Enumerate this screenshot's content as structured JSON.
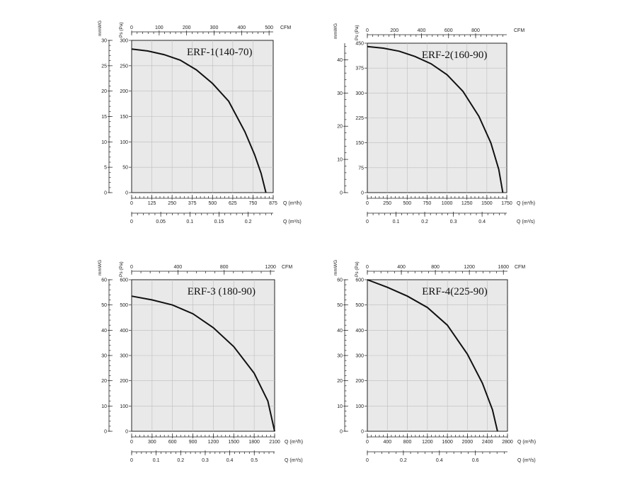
{
  "chart_data": [
    {
      "type": "line",
      "title": "ERF-1(140-70)",
      "series": [
        {
          "name": "ERF-1(140-70)",
          "x": [
            0,
            100,
            200,
            300,
            400,
            500,
            600,
            700,
            760,
            800,
            830
          ],
          "y": [
            283,
            279,
            272,
            261,
            242,
            215,
            180,
            120,
            75,
            38,
            0
          ]
        }
      ],
      "x_unit_label": "Q (m³/h)",
      "x_ticks": [
        "0",
        "125",
        "250",
        "375",
        "500",
        "625",
        "750",
        "875"
      ],
      "xlim": [
        0,
        875
      ],
      "y_label": "Ps (Pa)",
      "y_ticks": [
        "0",
        "50",
        "100",
        "150",
        "200",
        "250",
        "300"
      ],
      "ylim": [
        0,
        300
      ],
      "cfm_label": "CFM",
      "cfm_ticks": [
        "0",
        "100",
        "200",
        "300",
        "400",
        "500"
      ],
      "cfm_lim": [
        0,
        515
      ],
      "mmwg_label": "mmWG",
      "mmwg_ticks": [
        "0",
        "5",
        "10",
        "15",
        "20",
        "25",
        "30"
      ],
      "mmwg_lim": [
        0,
        30
      ],
      "m3s_label": "Q (m³/s)",
      "m3s_ticks": [
        "0",
        "0.05",
        "0.1",
        "0.15",
        "0.2"
      ],
      "m3s_lim": [
        0,
        0.243
      ]
    },
    {
      "type": "line",
      "title": "ERF-2(160-90)",
      "series": [
        {
          "name": "ERF-2(160-90)",
          "x": [
            0,
            200,
            400,
            600,
            800,
            1000,
            1200,
            1400,
            1550,
            1650,
            1700
          ],
          "y": [
            440,
            435,
            426,
            410,
            388,
            355,
            305,
            230,
            150,
            70,
            0
          ]
        }
      ],
      "x_unit_label": "Q (m³/h)",
      "x_ticks": [
        "0",
        "250",
        "500",
        "750",
        "1000",
        "1250",
        "1500",
        "1750"
      ],
      "xlim": [
        0,
        1750
      ],
      "y_label": "Ps (Pa)",
      "y_ticks": [
        "0",
        "75",
        "150",
        "225",
        "300",
        "375",
        "450"
      ],
      "ylim": [
        0,
        450
      ],
      "cfm_label": "CFM",
      "cfm_ticks": [
        "0",
        "200",
        "400",
        "600",
        "800"
      ],
      "cfm_lim": [
        0,
        1030
      ],
      "mmwg_label": "mmWG",
      "mmwg_ticks": [
        "0",
        "10",
        "20",
        "30",
        "40"
      ],
      "mmwg_lim": [
        0,
        45
      ],
      "m3s_label": "Q (m³/s)",
      "m3s_ticks": [
        "0",
        "0.1",
        "0.2",
        "0.3",
        "0.4"
      ],
      "m3s_lim": [
        0,
        0.486
      ]
    },
    {
      "type": "line",
      "title": "ERF-3 (180-90)",
      "series": [
        {
          "name": "ERF-3 (180-90)",
          "x": [
            0,
            300,
            600,
            900,
            1200,
            1500,
            1800,
            2000,
            2100
          ],
          "y": [
            535,
            520,
            500,
            465,
            410,
            335,
            230,
            120,
            0
          ]
        }
      ],
      "x_unit_label": "Q (m³/h)",
      "x_ticks": [
        "0",
        "300",
        "600",
        "900",
        "1200",
        "1500",
        "1800",
        "2100"
      ],
      "xlim": [
        0,
        2100
      ],
      "y_label": "Ps (Pa)",
      "y_ticks": [
        "0",
        "100",
        "200",
        "300",
        "400",
        "500",
        "600"
      ],
      "ylim": [
        0,
        600
      ],
      "cfm_label": "CFM",
      "cfm_ticks": [
        "0",
        "400",
        "800",
        "1200"
      ],
      "cfm_lim": [
        0,
        1236
      ],
      "mmwg_label": "mmWG",
      "mmwg_ticks": [
        "0",
        "10",
        "20",
        "30",
        "40",
        "50",
        "60"
      ],
      "mmwg_lim": [
        0,
        60
      ],
      "m3s_label": "Q (m³/s)",
      "m3s_ticks": [
        "0",
        "0.1",
        "0.2",
        "0.3",
        "0.4",
        "0.5"
      ],
      "m3s_lim": [
        0,
        0.583
      ]
    },
    {
      "type": "line",
      "title": "ERF-4(225-90)",
      "series": [
        {
          "name": "ERF-4(225-90)",
          "x": [
            0,
            400,
            800,
            1200,
            1600,
            2000,
            2300,
            2500,
            2600
          ],
          "y": [
            600,
            570,
            535,
            490,
            420,
            305,
            190,
            85,
            0
          ]
        }
      ],
      "x_unit_label": "Q (m³/h)",
      "x_ticks": [
        "0",
        "400",
        "800",
        "1200",
        "1600",
        "2000",
        "2400",
        "2800"
      ],
      "xlim": [
        0,
        2800
      ],
      "y_label": "Ps (Pa)",
      "y_ticks": [
        "0",
        "100",
        "200",
        "300",
        "400",
        "500",
        "600"
      ],
      "ylim": [
        0,
        600
      ],
      "cfm_label": "CFM",
      "cfm_ticks": [
        "0",
        "400",
        "800",
        "1200",
        "1600"
      ],
      "cfm_lim": [
        0,
        1648
      ],
      "mmwg_label": "mmWG",
      "mmwg_ticks": [
        "0",
        "10",
        "20",
        "30",
        "40",
        "50",
        "60"
      ],
      "mmwg_lim": [
        0,
        60
      ],
      "m3s_label": "Q (m³/s)",
      "m3s_ticks": [
        "0",
        "0.2",
        "0.4",
        "0.6"
      ],
      "m3s_lim": [
        0,
        0.778
      ]
    }
  ]
}
